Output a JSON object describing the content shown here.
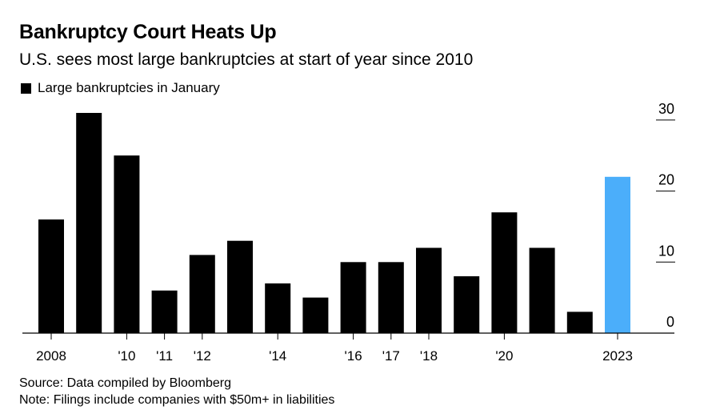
{
  "header": {
    "title": "Bankruptcy Court Heats Up",
    "subtitle": "U.S. sees most large bankruptcies at start of year since 2010"
  },
  "legend": {
    "label": "Large bankruptcies in January"
  },
  "footer": {
    "source": "Source: Data compiled by Bloomberg",
    "note": "Note: Filings include companies with $50m+ in liabilities"
  },
  "colors": {
    "default_bar": "#000000",
    "highlight_bar": "#4baefa"
  },
  "chart_data": {
    "type": "bar",
    "title": "Bankruptcy Court Heats Up",
    "series_name": "Large bankruptcies in January",
    "categories": [
      "2008",
      "2009",
      "2010",
      "2011",
      "2012",
      "2013",
      "2014",
      "2015",
      "2016",
      "2017",
      "2018",
      "2019",
      "2020",
      "2021",
      "2022",
      "2023"
    ],
    "values": [
      16,
      31,
      25,
      6,
      11,
      13,
      7,
      5,
      10,
      10,
      12,
      8,
      17,
      12,
      3,
      22
    ],
    "highlight_index": 15,
    "x_tick_labels": [
      {
        "index": 0,
        "label": "2008"
      },
      {
        "index": 2,
        "label": "'10"
      },
      {
        "index": 3,
        "label": "'11"
      },
      {
        "index": 4,
        "label": "'12"
      },
      {
        "index": 6,
        "label": "'14"
      },
      {
        "index": 8,
        "label": "'16"
      },
      {
        "index": 9,
        "label": "'17"
      },
      {
        "index": 10,
        "label": "'18"
      },
      {
        "index": 12,
        "label": "'20"
      },
      {
        "index": 15,
        "label": "2023"
      }
    ],
    "y_ticks": [
      0,
      10,
      20,
      30
    ],
    "ylim": [
      0,
      31
    ],
    "y_axis_position": "right",
    "xlabel": "",
    "ylabel": ""
  }
}
